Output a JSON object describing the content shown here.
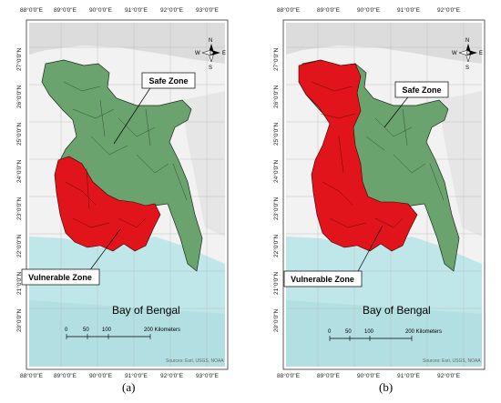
{
  "panels": [
    {
      "id": "a",
      "caption": "(a)",
      "top_ticks": [
        "88°0'0\"E",
        "89°0'0\"E",
        "90°0'0\"E",
        "91°0'0\"E",
        "92°0'0\"E",
        "93°0'0\"E"
      ],
      "bottom_ticks": [
        "88°0'0\"E",
        "89°0'0\"E",
        "90°0'0\"E",
        "91°0'0\"E",
        "92°0'0\"E",
        "93°0'0\"E"
      ],
      "left_ticks": [
        "27°0'0\"N",
        "26°0'0\"N",
        "25°0'0\"N",
        "24°0'0\"N",
        "23°0'0\"N",
        "22°0'0\"N",
        "21°0'0\"N",
        "20°0'0\"N"
      ],
      "labels": {
        "safe": "Safe Zone",
        "vulnerable": "Vulnerable Zone",
        "bay": "Bay of Bengal",
        "scale_ticks": [
          "0",
          "50",
          "100",
          "200 Kilometers"
        ],
        "sources": "Sources: Esri, USGS, NOAA",
        "compass": {
          "n": "N",
          "s": "S",
          "e": "E",
          "w": "W"
        }
      }
    },
    {
      "id": "b",
      "caption": "(b)",
      "top_ticks": [
        "88°0'0\"E",
        "89°0'0\"E",
        "90°0'0\"E",
        "91°0'0\"E",
        "92°0'0\"E"
      ],
      "bottom_ticks": [
        "88°0'0\"E",
        "89°0'0\"E",
        "90°0'0\"E",
        "91°0'0\"E",
        "92°0'0\"E"
      ],
      "left_ticks": [
        "27°0'0\"N",
        "26°0'0\"N",
        "25°0'0\"N",
        "24°0'0\"N",
        "23°0'0\"N",
        "22°0'0\"N",
        "21°0'0\"N",
        "20°0'0\"N"
      ],
      "labels": {
        "safe": "Safe Zone",
        "vulnerable": "Vulnerable Zone",
        "bay": "Bay of Bengal",
        "scale_ticks": [
          "0",
          "50",
          "100",
          "200 Kilometers"
        ],
        "sources": "Sources: Esri, USGS, NOAA",
        "compass": {
          "n": "N",
          "s": "S",
          "e": "E",
          "w": "W"
        }
      }
    }
  ],
  "colors": {
    "safe": "#6aa36e",
    "vulnerable": "#e0141a",
    "sea": "#bfe6e8",
    "terrain": "#e4e4e4",
    "border": "#1e2a1e"
  }
}
